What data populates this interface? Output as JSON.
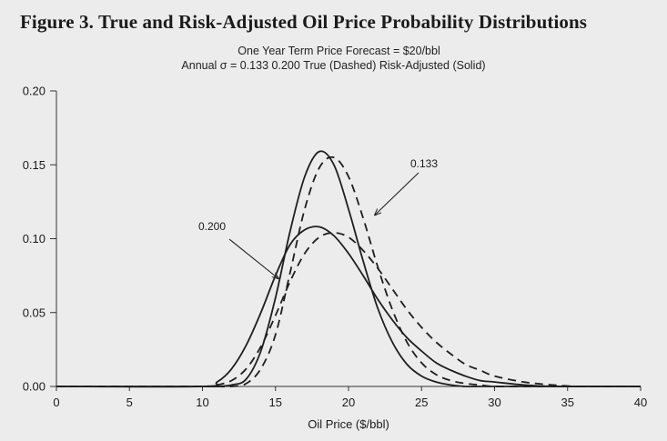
{
  "figure_title": "Figure 3. True and Risk-Adjusted Oil Price Probability Distributions",
  "subtitle_line1": "One Year Term   Price Forecast = $20/bbl",
  "subtitle_line2": "Annual σ = 0.133 0.200   True (Dashed)  Risk-Adjusted (Solid)",
  "chart_data": {
    "type": "line",
    "title": "Figure 3. True and Risk-Adjusted Oil Price Probability Distributions",
    "xlabel": "Oil Price ($/bbl)",
    "ylabel": "",
    "xlim": [
      0,
      40
    ],
    "ylim": [
      0,
      0.2
    ],
    "x_ticks": [
      0,
      5,
      10,
      15,
      20,
      25,
      30,
      35,
      40
    ],
    "y_ticks": [
      0.0,
      0.05,
      0.1,
      0.15,
      0.2
    ],
    "y_tick_labels": [
      "0.00",
      "0.05",
      "0.10",
      "0.15",
      "0.20"
    ],
    "grid": false,
    "x": [
      10,
      11,
      12,
      13,
      14,
      15,
      16,
      17,
      18,
      19,
      20,
      21,
      22,
      23,
      24,
      25,
      26,
      27,
      28,
      29,
      30,
      32,
      34,
      36
    ],
    "series": [
      {
        "style": "dashed",
        "values": [
          0.0,
          0.0,
          0.0,
          0.002,
          0.012,
          0.035,
          0.077,
          0.12,
          0.148,
          0.155,
          0.142,
          0.114,
          0.081,
          0.052,
          0.03,
          0.016,
          0.008,
          0.004,
          0.002,
          0.001,
          0.0,
          0.0,
          0.0,
          0.0
        ]
      },
      {
        "style": "solid",
        "values": [
          0.0,
          0.0,
          0.001,
          0.005,
          0.024,
          0.06,
          0.105,
          0.142,
          0.159,
          0.15,
          0.12,
          0.085,
          0.053,
          0.03,
          0.015,
          0.007,
          0.003,
          0.001,
          0.0,
          0.0,
          0.0,
          0.0,
          0.0,
          0.0
        ]
      },
      {
        "style": "dashed",
        "values": [
          0.0,
          0.001,
          0.004,
          0.012,
          0.027,
          0.048,
          0.071,
          0.09,
          0.101,
          0.104,
          0.101,
          0.092,
          0.08,
          0.066,
          0.052,
          0.04,
          0.03,
          0.022,
          0.015,
          0.011,
          0.007,
          0.003,
          0.001,
          0.0
        ]
      },
      {
        "style": "solid",
        "values": [
          0.0,
          0.003,
          0.012,
          0.028,
          0.05,
          0.075,
          0.096,
          0.106,
          0.108,
          0.102,
          0.09,
          0.075,
          0.059,
          0.045,
          0.033,
          0.024,
          0.016,
          0.011,
          0.007,
          0.004,
          0.003,
          0.001,
          0.0,
          0.0
        ]
      }
    ],
    "annotations": [
      {
        "text": "0.133",
        "arrow_target": [
          21.8,
          0.116
        ]
      },
      {
        "text": "0.200",
        "arrow_target": [
          15.2,
          0.073
        ]
      }
    ]
  }
}
